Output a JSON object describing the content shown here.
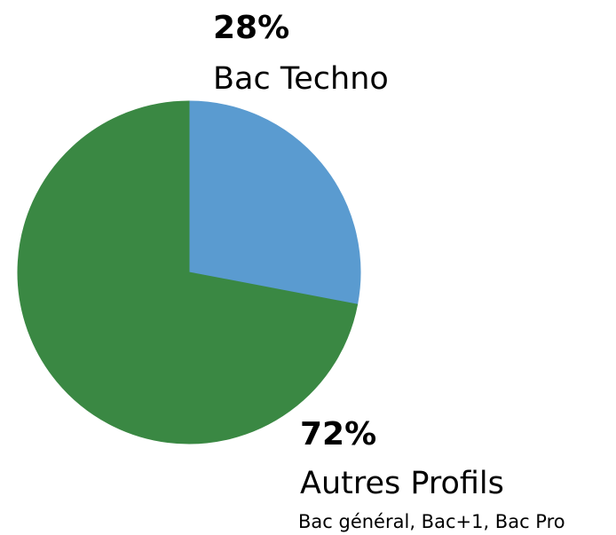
{
  "chart_data": {
    "type": "pie",
    "categories": [
      "Bac Techno",
      "Autres Profils"
    ],
    "values": [
      28,
      72
    ],
    "value_labels": [
      "28%",
      "72%"
    ],
    "colors": [
      "#5a9bd0",
      "#3a8843"
    ],
    "annotation": "Bac général, Bac+1, Bac Pro"
  }
}
